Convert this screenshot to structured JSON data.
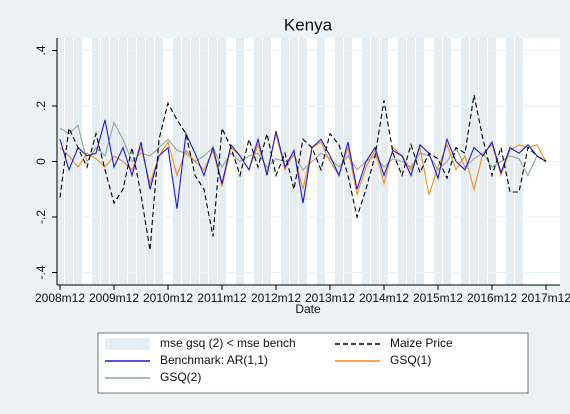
{
  "chart_data": {
    "type": "line",
    "title": "Kenya",
    "x_label": "Date",
    "x": [
      "2008m12",
      "2009m2",
      "2009m4",
      "2009m6",
      "2009m8",
      "2009m10",
      "2009m12",
      "2010m2",
      "2010m4",
      "2010m6",
      "2010m8",
      "2010m10",
      "2010m12",
      "2011m2",
      "2011m4",
      "2011m6",
      "2011m8",
      "2011m10",
      "2011m12",
      "2012m2",
      "2012m4",
      "2012m6",
      "2012m8",
      "2012m10",
      "2012m12",
      "2013m2",
      "2013m4",
      "2013m6",
      "2013m8",
      "2013m10",
      "2013m12",
      "2014m2",
      "2014m4",
      "2014m6",
      "2014m8",
      "2014m10",
      "2014m12",
      "2015m2",
      "2015m4",
      "2015m6",
      "2015m8",
      "2015m10",
      "2015m12",
      "2016m2",
      "2016m4",
      "2016m6",
      "2016m8",
      "2016m10",
      "2016m12",
      "2017m2",
      "2017m4",
      "2017m6",
      "2017m8",
      "2017m10",
      "2017m12"
    ],
    "xticks": [
      "2008m12",
      "2009m12",
      "2010m12",
      "2011m12",
      "2012m12",
      "2013m12",
      "2014m12",
      "2015m12",
      "2016m12",
      "2017m12"
    ],
    "ylim": [
      -0.445,
      0.445
    ],
    "yticks": [
      {
        "value": -0.4,
        "label": "-.4"
      },
      {
        "value": -0.2,
        "label": "-.2"
      },
      {
        "value": 0,
        "label": "0"
      },
      {
        "value": 0.2,
        "label": ".2"
      },
      {
        "value": 0.4,
        "label": ".4"
      }
    ],
    "grid": true,
    "shading": {
      "name": "mse gsq (2) < mse bench",
      "color": "#e6edf2",
      "values": [
        1,
        1,
        1,
        0,
        1,
        1,
        1,
        1,
        1,
        1,
        1,
        1,
        0,
        1,
        1,
        1,
        1,
        1,
        1,
        0,
        1,
        0,
        1,
        1,
        0,
        1,
        1,
        1,
        0,
        1,
        0,
        1,
        1,
        0,
        1,
        1,
        1,
        0,
        1,
        1,
        1,
        0,
        1,
        1,
        0,
        1,
        1,
        1,
        1,
        0,
        1,
        1,
        0,
        0,
        0
      ]
    },
    "series": [
      {
        "name": "Maize Price",
        "color": "#000000",
        "dash": true,
        "values": [
          -0.13,
          0.12,
          0.05,
          -0.02,
          0.1,
          -0.03,
          -0.15,
          -0.1,
          0.05,
          -0.12,
          -0.32,
          0.08,
          0.21,
          0.15,
          0.1,
          -0.05,
          -0.1,
          -0.27,
          0.12,
          0.05,
          -0.05,
          0.08,
          -0.02,
          0.1,
          -0.05,
          0.03,
          -0.1,
          0.08,
          0.05,
          -0.03,
          0.1,
          0.06,
          -0.05,
          -0.2,
          -0.1,
          0.02,
          0.22,
          0.03,
          -0.05,
          0.06,
          -0.04,
          0.03,
          0.01,
          -0.06,
          0.05,
          0.03,
          0.24,
          0.08,
          -0.05,
          0.05,
          -0.11,
          -0.11,
          0.05,
          0.02,
          0.0
        ]
      },
      {
        "name": "Benchmark: AR(1,1)",
        "color": "#1a1adb",
        "dash": false,
        "values": [
          0.08,
          -0.03,
          0.05,
          0.02,
          0.03,
          0.15,
          -0.02,
          0.05,
          -0.05,
          0.07,
          -0.1,
          0.02,
          0.05,
          -0.17,
          0.1,
          0.03,
          -0.05,
          0.05,
          -0.08,
          0.06,
          0.02,
          -0.03,
          0.08,
          -0.05,
          0.11,
          -0.02,
          0.04,
          -0.15,
          0.05,
          0.08,
          0.02,
          -0.05,
          0.07,
          -0.1,
          0.0,
          0.05,
          -0.05,
          0.04,
          0.02,
          -0.05,
          0.06,
          0.03,
          -0.06,
          0.08,
          0.0,
          -0.03,
          0.05,
          0.02,
          0.07,
          -0.04,
          0.05,
          0.03,
          0.06,
          0.02,
          0.0
        ]
      },
      {
        "name": "GSQ(1)",
        "color": "#f08c1e",
        "dash": false,
        "values": [
          0.05,
          0.02,
          -0.02,
          0.03,
          0.01,
          -0.02,
          0.02,
          0.0,
          -0.03,
          0.05,
          -0.08,
          0.02,
          0.07,
          -0.05,
          0.04,
          0.0,
          -0.03,
          0.04,
          -0.09,
          0.05,
          0.02,
          -0.03,
          0.06,
          -0.04,
          0.1,
          -0.03,
          0.03,
          -0.1,
          0.05,
          0.07,
          0.0,
          -0.05,
          0.05,
          -0.12,
          -0.02,
          0.04,
          -0.08,
          0.05,
          0.02,
          -0.03,
          0.05,
          -0.12,
          -0.02,
          0.06,
          -0.03,
          0.02,
          -0.1,
          0.03,
          0.06,
          -0.05,
          0.04,
          0.06,
          0.05,
          0.06,
          0.0
        ]
      },
      {
        "name": "GSQ(2)",
        "color": "#8fa69c",
        "dash": false,
        "values": [
          0.12,
          0.1,
          0.13,
          0.0,
          0.05,
          0.02,
          0.14,
          0.08,
          0.0,
          0.03,
          0.02,
          0.05,
          0.08,
          0.04,
          0.03,
          0.0,
          0.02,
          0.05,
          -0.02,
          0.03,
          0.0,
          0.02,
          0.03,
          -0.02,
          0.01,
          0.0,
          0.02,
          -0.03,
          0.0,
          0.03,
          0.01,
          -0.02,
          0.02,
          -0.03,
          0.0,
          0.02,
          -0.02,
          0.01,
          0.0,
          -0.02,
          0.03,
          0.02,
          -0.03,
          0.0,
          0.05,
          -0.02,
          0.01,
          0.03,
          -0.02,
          0.0,
          0.02,
          0.01,
          -0.05,
          0.02,
          0.0
        ]
      }
    ]
  }
}
